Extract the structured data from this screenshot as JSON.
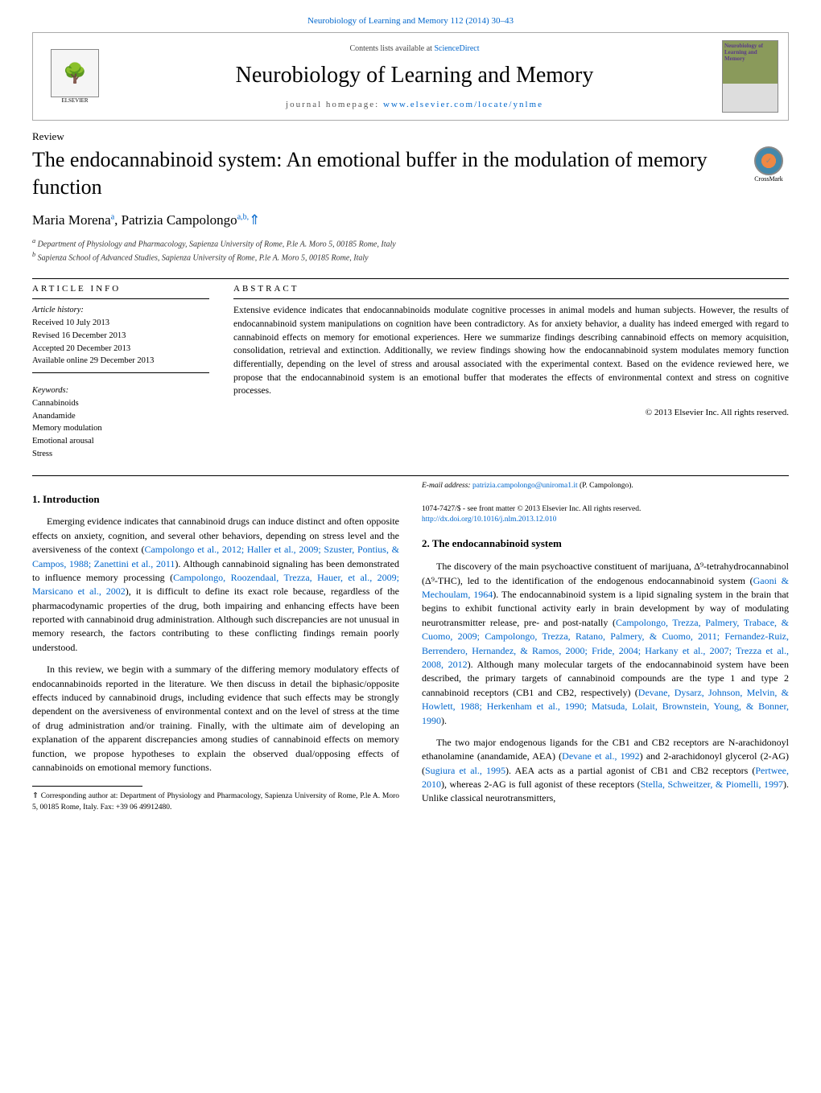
{
  "header": {
    "journal_ref_link": "Neurobiology of Learning and Memory 112 (2014) 30–43",
    "contents_prefix": "Contents lists available at ",
    "contents_link": "ScienceDirect",
    "journal_title": "Neurobiology of Learning and Memory",
    "homepage_prefix": "journal homepage: ",
    "homepage_link": "www.elsevier.com/locate/ynlme",
    "cover_title": "Neurobiology of Learning and Memory",
    "elsevier_label": "ELSEVIER",
    "crossmark_label": "CrossMark"
  },
  "article": {
    "type": "Review",
    "title": "The endocannabinoid system: An emotional buffer in the modulation of memory function",
    "authors_html": "Maria Morena <sup>a</sup>, Patrizia Campolongo <sup>a,b,</sup>",
    "authors_plain": "Maria Morena, Patrizia Campolongo",
    "author1": "Maria Morena",
    "author1_sup": "a",
    "author2": "Patrizia Campolongo",
    "author2_sup": "a,b,",
    "star": "⇑",
    "affiliations": {
      "a": "Department of Physiology and Pharmacology, Sapienza University of Rome, P.le A. Moro 5, 00185 Rome, Italy",
      "b": "Sapienza School of Advanced Studies, Sapienza University of Rome, P.le A. Moro 5, 00185 Rome, Italy"
    }
  },
  "info": {
    "heading": "ARTICLE INFO",
    "history_label": "Article history:",
    "received": "Received 10 July 2013",
    "revised": "Revised 16 December 2013",
    "accepted": "Accepted 20 December 2013",
    "online": "Available online 29 December 2013",
    "keywords_label": "Keywords:",
    "keywords": [
      "Cannabinoids",
      "Anandamide",
      "Memory modulation",
      "Emotional arousal",
      "Stress"
    ]
  },
  "abstract": {
    "heading": "ABSTRACT",
    "text": "Extensive evidence indicates that endocannabinoids modulate cognitive processes in animal models and human subjects. However, the results of endocannabinoid system manipulations on cognition have been contradictory. As for anxiety behavior, a duality has indeed emerged with regard to cannabinoid effects on memory for emotional experiences. Here we summarize findings describing cannabinoid effects on memory acquisition, consolidation, retrieval and extinction. Additionally, we review findings showing how the endocannabinoid system modulates memory function differentially, depending on the level of stress and arousal associated with the experimental context. Based on the evidence reviewed here, we propose that the endocannabinoid system is an emotional buffer that moderates the effects of environmental context and stress on cognitive processes.",
    "copyright": "© 2013 Elsevier Inc. All rights reserved."
  },
  "body": {
    "sec1_heading": "1. Introduction",
    "sec1_p1_a": "Emerging evidence indicates that cannabinoid drugs can induce distinct and often opposite effects on anxiety, cognition, and several other behaviors, depending on stress level and the aversiveness of the context (",
    "sec1_p1_cite1": "Campolongo et al., 2012; Haller et al., 2009; Szuster, Pontius, & Campos, 1988; Zanettini et al., 2011",
    "sec1_p1_b": "). Although cannabinoid signaling has been demonstrated to influence memory processing (",
    "sec1_p1_cite2": "Campolongo, Roozendaal, Trezza, Hauer, et al., 2009; Marsicano et al., 2002",
    "sec1_p1_c": "), it is difficult to define its exact role because, regardless of the pharmacodynamic properties of the drug, both impairing and enhancing effects have been reported with cannabinoid drug administration. Although such discrepancies are not unusual in memory research, the factors contributing to these conflicting findings remain poorly understood.",
    "sec1_p2": "In this review, we begin with a summary of the differing memory modulatory effects of endocannabinoids reported in the literature. We then discuss in detail the biphasic/opposite effects induced by cannabinoid drugs, including evidence that such effects may be strongly dependent on the aversiveness of environmental context and on the level of stress at the time of drug administration and/or training. Finally, with the ultimate aim of developing an explanation of the apparent discrepancies among studies of can",
    "sec1_p2_cont": "nabinoid effects on memory function, we propose hypotheses to explain the observed dual/opposing effects of cannabinoids on emotional memory functions.",
    "sec2_heading": "2. The endocannabinoid system",
    "sec2_p1_a": "The discovery of the main psychoactive constituent of marijuana, Δ⁹-tetrahydrocannabinol (Δ⁹-THC), led to the identification of the endogenous endocannabinoid system (",
    "sec2_p1_cite1": "Gaoni & Mechoulam, 1964",
    "sec2_p1_b": "). The endocannabinoid system is a lipid signaling system in the brain that begins to exhibit functional activity early in brain development by way of modulating neurotransmitter release, pre- and post-natally (",
    "sec2_p1_cite2": "Campolongo, Trezza, Palmery, Trabace, & Cuomo, 2009; Campolongo, Trezza, Ratano, Palmery, & Cuomo, 2011; Fernandez-Ruiz, Berrendero, Hernandez, & Ramos, 2000; Fride, 2004; Harkany et al., 2007; Trezza et al., 2008, 2012",
    "sec2_p1_c": "). Although many molecular targets of the endocannabinoid system have been described, the primary targets of cannabinoid compounds are the type 1 and type 2 cannabinoid receptors (CB1 and CB2, respectively) (",
    "sec2_p1_cite3": "Devane, Dysarz, Johnson, Melvin, & Howlett, 1988; Herkenham et al., 1990; Matsuda, Lolait, Brownstein, Young, & Bonner, 1990",
    "sec2_p1_d": ").",
    "sec2_p2_a": "The two major endogenous ligands for the CB1 and CB2 receptors are N-arachidonoyl ethanolamine (anandamide, AEA) (",
    "sec2_p2_cite1": "Devane et al., 1992",
    "sec2_p2_b": ") and 2-arachidonoyl glycerol (2-AG) (",
    "sec2_p2_cite2": "Sugiura et al., 1995",
    "sec2_p2_c": "). AEA acts as a partial agonist of CB1 and CB2 receptors (",
    "sec2_p2_cite3": "Pertwee, 2010",
    "sec2_p2_d": "), whereas 2-AG is full agonist of these receptors (",
    "sec2_p2_cite4": "Stella, Schweitzer, & Piomelli, 1997",
    "sec2_p2_e": "). Unlike classical neurotransmitters,"
  },
  "footnote": {
    "corr": "⇑ Corresponding author at: Department of Physiology and Pharmacology, Sapienza University of Rome, P.le A. Moro 5, 00185 Rome, Italy. Fax: +39 06 49912480.",
    "email_label": "E-mail address: ",
    "email": "patrizia.campolongo@uniroma1.it",
    "email_suffix": " (P. Campolongo)."
  },
  "footer": {
    "meta1": "1074-7427/$ - see front matter © 2013 Elsevier Inc. All rights reserved.",
    "doi": "http://dx.doi.org/10.1016/j.nlm.2013.12.010"
  }
}
